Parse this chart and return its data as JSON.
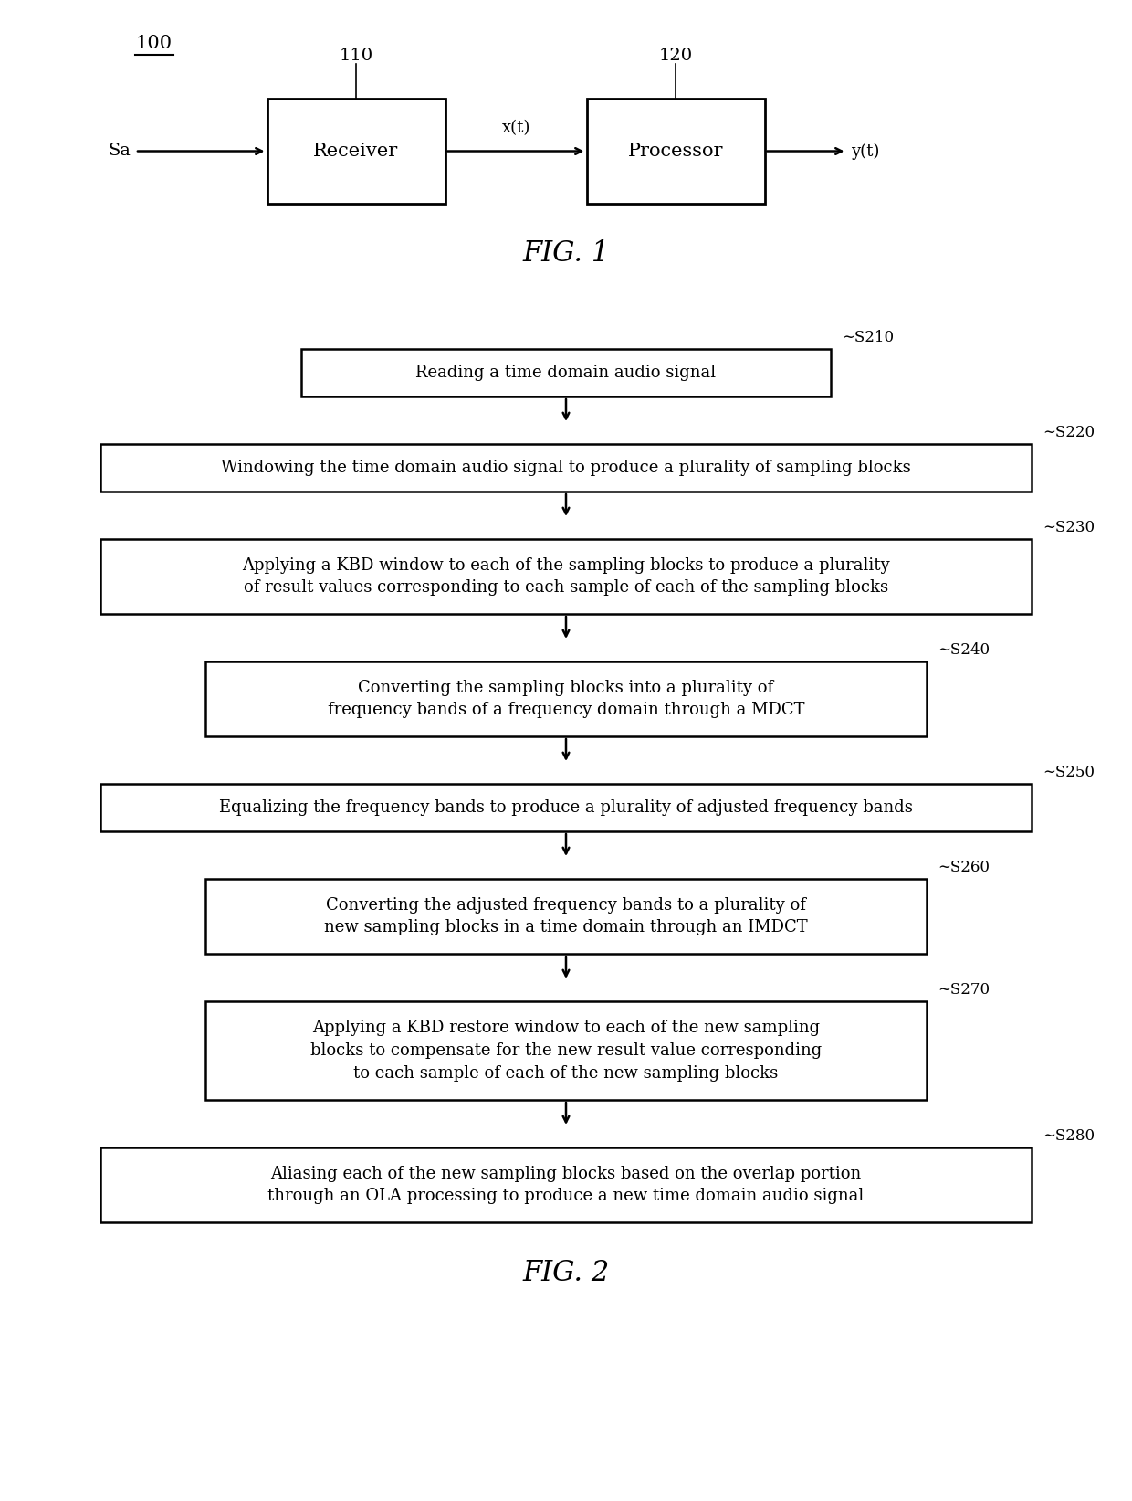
{
  "bg_color": "#ffffff",
  "fig_width": 12.4,
  "fig_height": 16.43,
  "dpi": 100,
  "fig1": {
    "label_100": "100",
    "label_110": "110",
    "label_120": "120",
    "receiver_text": "Receiver",
    "processor_text": "Processor",
    "sa_text": "Sa",
    "xt_text": "x(t)",
    "yt_text": "y(t)",
    "caption": "FIG. 1"
  },
  "fig2": {
    "caption": "FIG. 2",
    "steps": [
      {
        "id": "S210",
        "text": "Reading a time domain audio signal",
        "wide": false,
        "medium": false,
        "lines": 1
      },
      {
        "id": "S220",
        "text": "Windowing the time domain audio signal to produce a plurality of sampling blocks",
        "wide": true,
        "medium": false,
        "lines": 1
      },
      {
        "id": "S230",
        "text": "Applying a KBD window to each of the sampling blocks to produce a plurality\nof result values corresponding to each sample of each of the sampling blocks",
        "wide": true,
        "medium": false,
        "lines": 2
      },
      {
        "id": "S240",
        "text": "Converting the sampling blocks into a plurality of\nfrequency bands of a frequency domain through a MDCT",
        "wide": false,
        "medium": true,
        "lines": 2
      },
      {
        "id": "S250",
        "text": "Equalizing the frequency bands to produce a plurality of adjusted frequency bands",
        "wide": true,
        "medium": false,
        "lines": 1
      },
      {
        "id": "S260",
        "text": "Converting the adjusted frequency bands to a plurality of\nnew sampling blocks in a time domain through an IMDCT",
        "wide": false,
        "medium": true,
        "lines": 2
      },
      {
        "id": "S270",
        "text": "Applying a KBD restore window to each of the new sampling\nblocks to compensate for the new result value corresponding\nto each sample of each of the new sampling blocks",
        "wide": false,
        "medium": true,
        "lines": 3
      },
      {
        "id": "S280",
        "text": "Aliasing each of the new sampling blocks based on the overlap portion\nthrough an OLA processing to produce a new time domain audio signal",
        "wide": true,
        "medium": false,
        "lines": 2
      }
    ]
  }
}
